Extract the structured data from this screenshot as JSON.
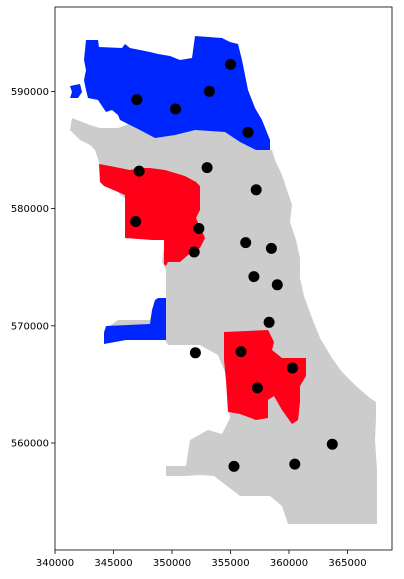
{
  "map": {
    "colors": {
      "base_region": "#cccccc",
      "highlight_blue": "#0026ff",
      "highlight_red": "#ff0018",
      "marker": "#000000",
      "axis": "#000000",
      "background": "#ffffff"
    },
    "x_axis": {
      "ticks": [
        340000,
        345000,
        350000,
        355000,
        360000,
        365000
      ],
      "labels": [
        "340000",
        "345000",
        "350000",
        "355000",
        "360000",
        "365000"
      ]
    },
    "y_axis": {
      "ticks": [
        560000,
        570000,
        580000,
        590000
      ],
      "labels": [
        "560000",
        "570000",
        "580000",
        "590000"
      ]
    },
    "markers": [
      {
        "x": 347000,
        "y": 589300
      },
      {
        "x": 350300,
        "y": 588500
      },
      {
        "x": 353200,
        "y": 590000
      },
      {
        "x": 355000,
        "y": 592300
      },
      {
        "x": 356500,
        "y": 586500
      },
      {
        "x": 347200,
        "y": 583200
      },
      {
        "x": 353000,
        "y": 583500
      },
      {
        "x": 357200,
        "y": 581600
      },
      {
        "x": 346900,
        "y": 578900
      },
      {
        "x": 352300,
        "y": 578300
      },
      {
        "x": 351900,
        "y": 576300
      },
      {
        "x": 356300,
        "y": 577100
      },
      {
        "x": 358500,
        "y": 576600
      },
      {
        "x": 357000,
        "y": 574200
      },
      {
        "x": 359000,
        "y": 573500
      },
      {
        "x": 358300,
        "y": 570300
      },
      {
        "x": 352000,
        "y": 567700
      },
      {
        "x": 355900,
        "y": 567800
      },
      {
        "x": 360300,
        "y": 566400
      },
      {
        "x": 357300,
        "y": 564700
      },
      {
        "x": 363700,
        "y": 559900
      },
      {
        "x": 355300,
        "y": 558000
      },
      {
        "x": 360500,
        "y": 558200
      }
    ]
  }
}
